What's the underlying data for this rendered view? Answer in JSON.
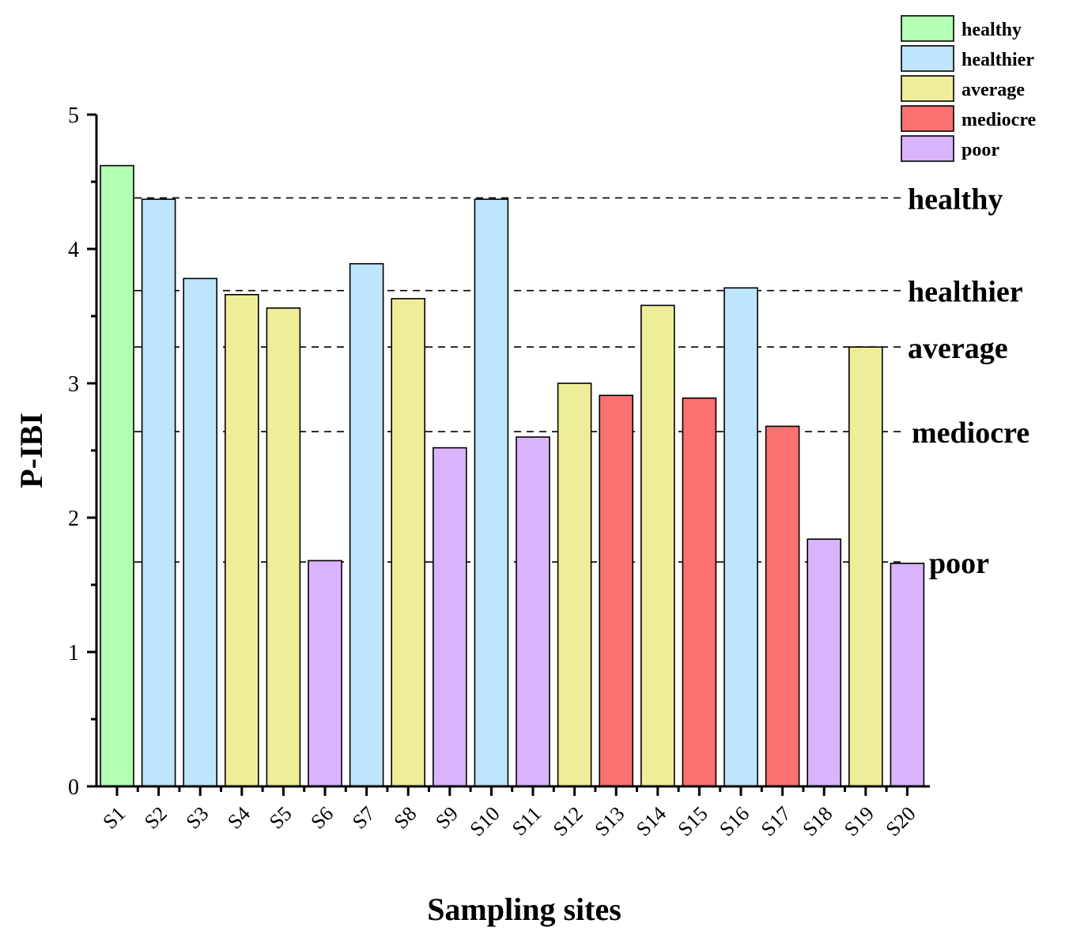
{
  "chart_data": {
    "type": "bar",
    "xlabel": "Sampling sites",
    "ylabel": "P-IBI",
    "ylim": [
      0,
      5
    ],
    "yticks": [
      "0",
      "1",
      "2",
      "3",
      "4",
      "5"
    ],
    "categories": [
      "S1",
      "S2",
      "S3",
      "S4",
      "S5",
      "S6",
      "S7",
      "S8",
      "S9",
      "S10",
      "S11",
      "S12",
      "S13",
      "S14",
      "S15",
      "S16",
      "S17",
      "S18",
      "S19",
      "S20"
    ],
    "values": [
      4.62,
      4.37,
      3.78,
      3.66,
      3.56,
      1.68,
      3.89,
      3.63,
      2.52,
      4.37,
      2.6,
      3.0,
      2.91,
      3.58,
      2.89,
      3.71,
      2.68,
      1.84,
      3.27,
      1.66
    ],
    "status": [
      "healthy",
      "healthier",
      "healthier",
      "average",
      "average",
      "poor",
      "healthier",
      "average",
      "poor",
      "healthier",
      "poor",
      "average",
      "mediocre",
      "average",
      "mediocre",
      "healthier",
      "mediocre",
      "poor",
      "average",
      "poor"
    ],
    "legend": [
      {
        "label": "healthy",
        "color": "#b3ffb3"
      },
      {
        "label": "healthier",
        "color": "#bde5fc"
      },
      {
        "label": "average",
        "color": "#f0ed9a"
      },
      {
        "label": "mediocre",
        "color": "#fb7070"
      },
      {
        "label": "poor",
        "color": "#d9b3fb"
      }
    ],
    "thresholds": [
      {
        "label": "healthy",
        "value": 4.38
      },
      {
        "label": "healthier",
        "value": 3.69
      },
      {
        "label": "average",
        "value": 3.27
      },
      {
        "label": "mediocre",
        "value": 2.64
      },
      {
        "label": "poor",
        "value": 1.67
      }
    ]
  }
}
